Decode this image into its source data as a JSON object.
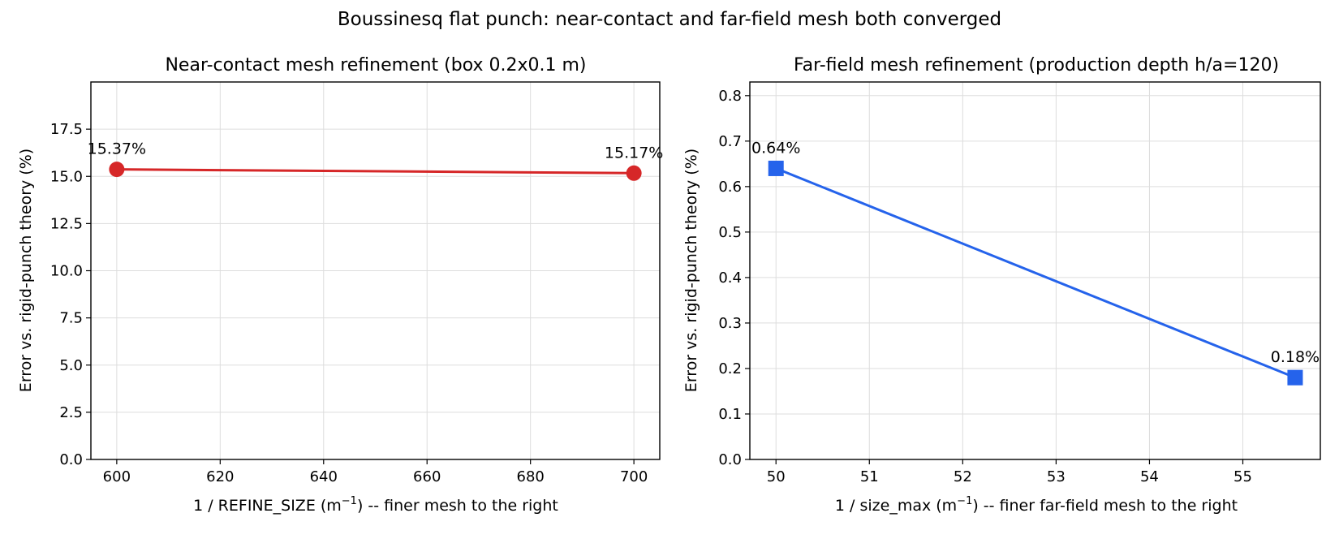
{
  "figure": {
    "suptitle": "Boussinesq flat punch: near-contact and far-field mesh both converged"
  },
  "chart_data": [
    {
      "type": "line",
      "title": "Near-contact mesh refinement (box 0.2x0.1 m)",
      "xlabel_pre": "1 / REFINE_SIZE (m",
      "xlabel_sup": "−1",
      "xlabel_post": ") -- finer mesh to the right",
      "ylabel": "Error vs. rigid-punch theory (%)",
      "xlim": [
        595,
        705
      ],
      "ylim": [
        0,
        20
      ],
      "xticks": [
        600,
        620,
        640,
        660,
        680,
        700
      ],
      "yticks": [
        0.0,
        2.5,
        5.0,
        7.5,
        10.0,
        12.5,
        15.0,
        17.5
      ],
      "ytick_decimals": 1,
      "grid": true,
      "marker": "circle",
      "color": "#d62728",
      "series": [
        {
          "x": [
            600,
            700
          ],
          "y": [
            15.37,
            15.17
          ],
          "labels": [
            "15.37%",
            "15.17%"
          ]
        }
      ]
    },
    {
      "type": "line",
      "title": "Far-field mesh refinement (production depth h/a=120)",
      "xlabel_pre": "1 / size_max (m",
      "xlabel_sup": "−1",
      "xlabel_post": ") -- finer far-field mesh to the right",
      "ylabel": "Error vs. rigid-punch theory (%)",
      "xlim": [
        49.72,
        55.83
      ],
      "ylim": [
        0,
        0.83
      ],
      "xticks": [
        50,
        51,
        52,
        53,
        54,
        55
      ],
      "yticks": [
        0.0,
        0.1,
        0.2,
        0.3,
        0.4,
        0.5,
        0.6,
        0.7,
        0.8
      ],
      "ytick_decimals": 1,
      "grid": true,
      "marker": "square",
      "color": "#2563eb",
      "series": [
        {
          "x": [
            50,
            55.56
          ],
          "y": [
            0.64,
            0.18
          ],
          "labels": [
            "0.64%",
            "0.18%"
          ]
        }
      ]
    }
  ]
}
